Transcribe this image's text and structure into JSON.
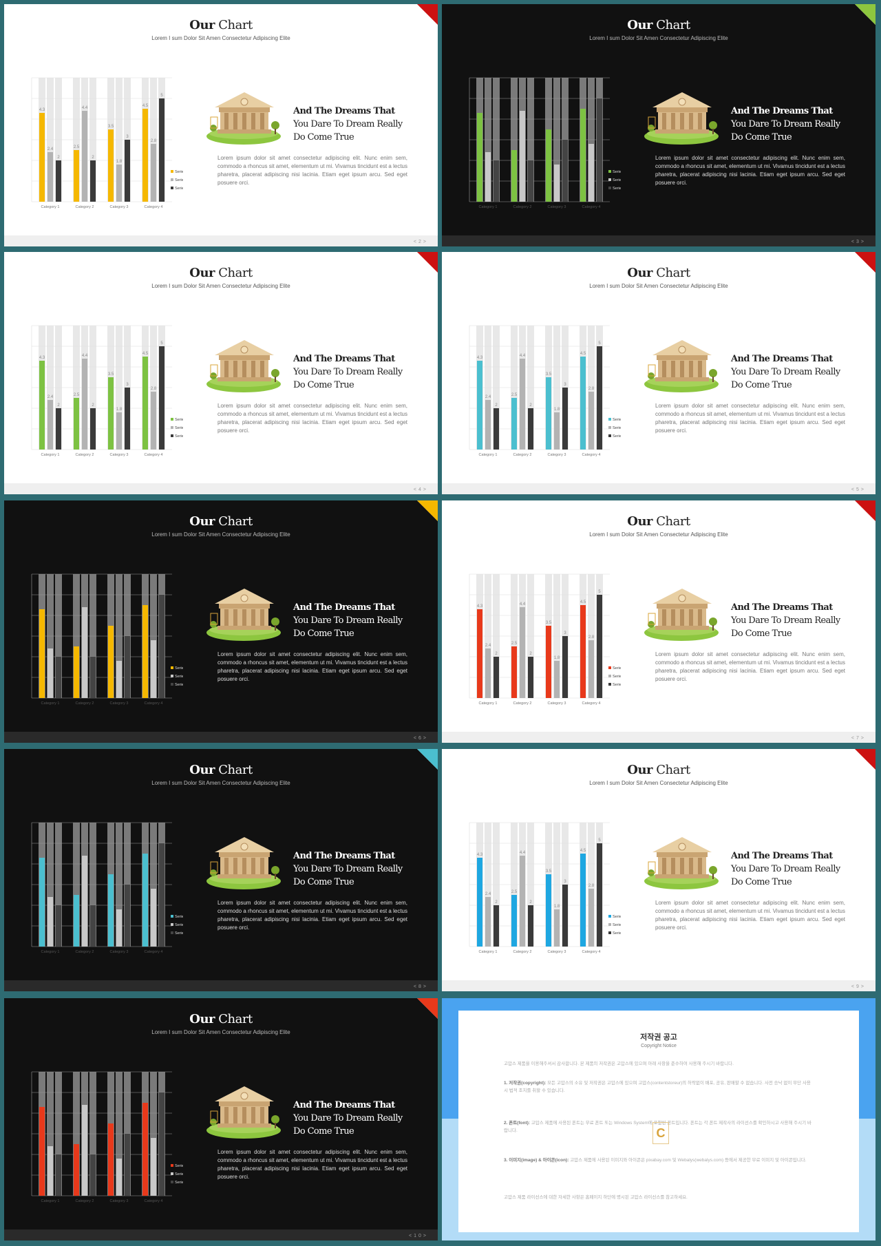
{
  "common": {
    "title_bold": "Our",
    "title_rest": "Chart",
    "subtitle": "Lorem I sum Dolor Sit Amen Consectetur Adipiscing Elite",
    "heading_line1": "And The Dreams That",
    "heading_line2": "You Dare To Dream Really",
    "heading_line3": "Do Come True",
    "body": "Lorem ipsum dolor sit amet consectetur adipiscing elit. Nunc enim sem, commodo a rhoncus sit amet, elementum ut mi. Vivamus tincidunt est a lectus pharetra, placerat adipiscing nisi lacinia. Etiam eget ipsum arcu. Sed eget posuere orci.",
    "pager_prev": "<",
    "pager_next": ">"
  },
  "chart_data": {
    "type": "bar",
    "categories": [
      "Category 1",
      "Category 2",
      "Category 3",
      "Category 4"
    ],
    "series": [
      {
        "name": "Series 1",
        "values": [
          4.3,
          2.5,
          3.5,
          4.5
        ]
      },
      {
        "name": "Series 2",
        "values": [
          2.4,
          4.4,
          1.8,
          2.8
        ]
      },
      {
        "name": "Series 3",
        "values": [
          2,
          2,
          3,
          5
        ]
      }
    ],
    "ylim": [
      0,
      6
    ],
    "grid": true,
    "legend": "right"
  },
  "slides": [
    {
      "theme": "light",
      "accent": "#f5b800",
      "corner": "#cc1111",
      "corner_bg": "#d9d9d9",
      "page": "2",
      "labels": true
    },
    {
      "theme": "dark",
      "accent": "#7dc242",
      "corner": "#8dc63f",
      "corner_bg": "#ffffff",
      "page": "3",
      "labels": false
    },
    {
      "theme": "light",
      "accent": "#7dc242",
      "corner": "#cc1111",
      "corner_bg": "#d9d9d9",
      "page": "4",
      "labels": true
    },
    {
      "theme": "light",
      "accent": "#4bbfcf",
      "corner": "#cc1111",
      "corner_bg": "#d9d9d9",
      "page": "5",
      "labels": true
    },
    {
      "theme": "dark",
      "accent": "#f5b800",
      "corner": "#f5b800",
      "corner_bg": "#ffffff",
      "page": "6",
      "labels": false
    },
    {
      "theme": "light",
      "accent": "#e8391b",
      "corner": "#cc1111",
      "corner_bg": "#d9d9d9",
      "page": "7",
      "labels": true
    },
    {
      "theme": "dark",
      "accent": "#4bbfcf",
      "corner": "#4bbfcf",
      "corner_bg": "#ffffff",
      "page": "8",
      "labels": false
    },
    {
      "theme": "light",
      "accent": "#1ea7e1",
      "corner": "#cc1111",
      "corner_bg": "#d9d9d9",
      "page": "9",
      "labels": true
    },
    {
      "theme": "dark",
      "accent": "#e8391b",
      "corner": "#e8391b",
      "corner_bg": "#ffffff",
      "page": "10",
      "labels": false
    }
  ],
  "copyright": {
    "title": "저작권 공고",
    "subtitle": "Copyright Notice",
    "p0": "고맙스 제품을 이용해주셔서 감사합니다. 본 제품의 저작권은 고맙스에 있으며 아래 사항을 준수하여 사용해 주시기 바랍니다.",
    "p1_bold": "1. 저작권(copyright):",
    "p1": " 모든 고맙스의 소유 및 저작권은 고맙스에 있으며 고맙스(contentstoreur)의 허락없이 배포, 공유, 판매할 수 없습니다. 사전 승낙 없이 무단 사용 시 법적 조치를 취할 수 있습니다.",
    "p2_bold": "2. 폰트(font):",
    "p2": " 고맙스 제품에 사용된 폰트는 무료 폰트 또는 Windows System에 포함된 폰트입니다. 폰트는 각 폰트 제작사의 라이선스를 확인하시고 사용해 주시기 바랍니다.",
    "p3_bold": "3. 이미지(image) & 아이콘(icon):",
    "p3": " 고맙스 제품에 사용된 이미지와 아이콘은 pixabay.com 및 Webalys(webalys.com) 등에서 제공한 무료 이미지 및 아이콘입니다.",
    "p4": "고맙스 제품 라이선스에 대한 자세한 사항은 홈페이지 하단에 명시된 고맙스 라이선스를 참고하세요.",
    "logo": "C"
  }
}
